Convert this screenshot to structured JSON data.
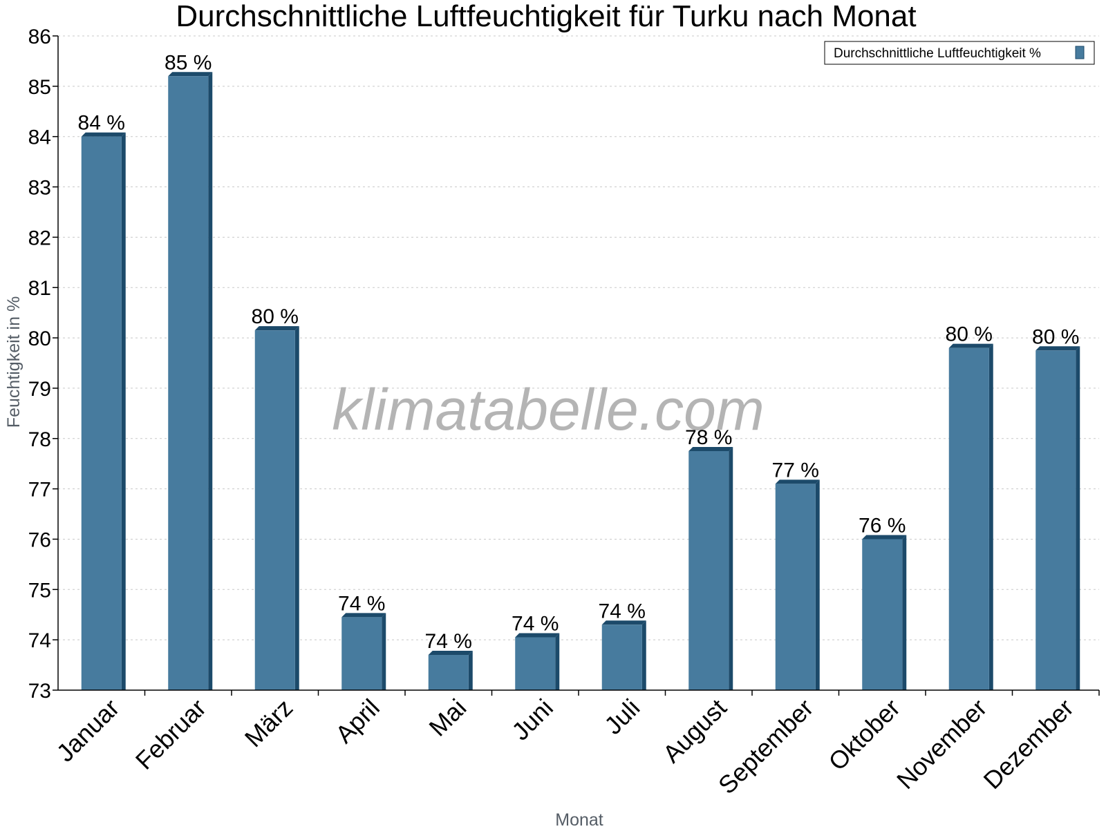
{
  "chart_data": {
    "type": "bar",
    "title": "Durchschnittliche Luftfeuchtigkeit für Turku nach Monat",
    "xlabel": "Monat",
    "ylabel": "Feuchtigkeit in %",
    "ylim": [
      73,
      86
    ],
    "yticks": [
      73,
      74,
      75,
      76,
      77,
      78,
      79,
      80,
      81,
      82,
      83,
      84,
      85,
      86
    ],
    "grid": true,
    "legend_position": "top-right",
    "categories": [
      "Januar",
      "Februar",
      "März",
      "April",
      "Mai",
      "Juni",
      "Juli",
      "August",
      "September",
      "Oktober",
      "November",
      "Dezember"
    ],
    "series": [
      {
        "name": "Durchschnittliche Luftfeuchtigkeit %",
        "values": [
          84.0,
          85.2,
          80.15,
          74.45,
          73.7,
          74.05,
          74.3,
          77.75,
          77.1,
          76.0,
          79.8,
          79.75
        ],
        "labels": [
          "84 %",
          "85 %",
          "80 %",
          "74 %",
          "74 %",
          "74 %",
          "74 %",
          "78 %",
          "77 %",
          "76 %",
          "80 %",
          "80 %"
        ],
        "color": "#477b9e",
        "side_color": "#1c4a6a"
      }
    ],
    "watermark": "klimatabelle.com"
  }
}
